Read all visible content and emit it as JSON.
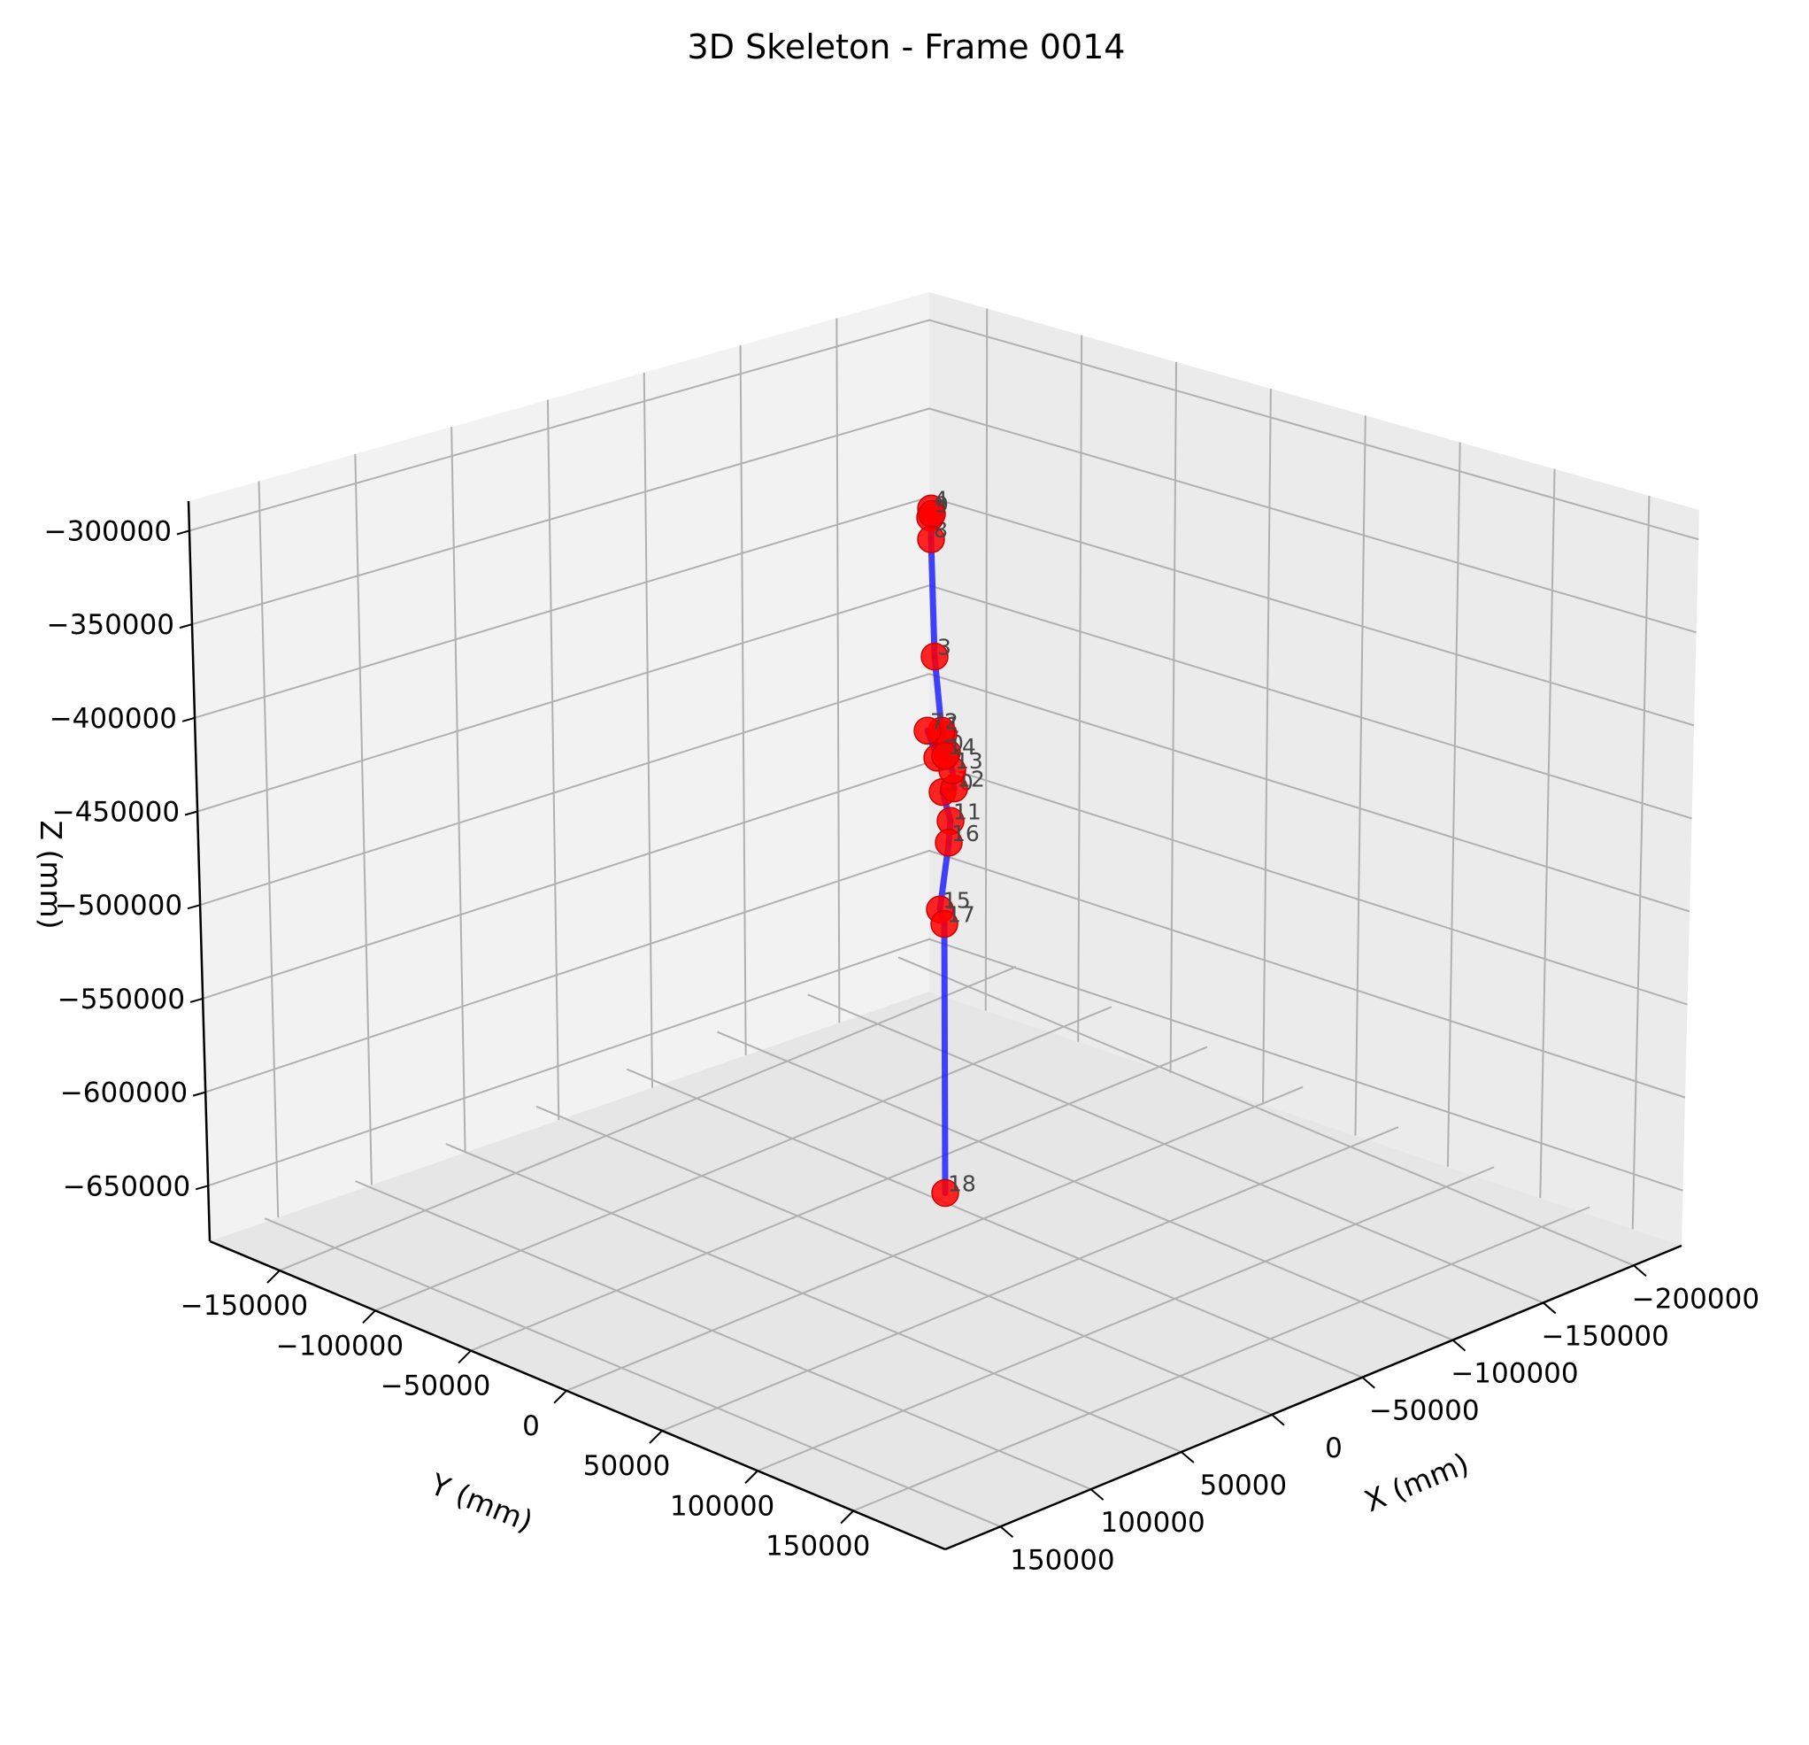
{
  "chart_data": {
    "type": "scatter",
    "projection": "3d",
    "title": "3D Skeleton - Frame 0014",
    "xlabel": "X (mm)",
    "ylabel": "Y (mm)",
    "zlabel": "Z (mm)",
    "xticks": [
      "−200000",
      "−150000",
      "−100000",
      "−50000",
      "0",
      "50000",
      "100000",
      "150000"
    ],
    "yticks": [
      "−150000",
      "−100000",
      "−50000",
      "0",
      "50000",
      "100000",
      "150000"
    ],
    "zticks": [
      "−300000",
      "−350000",
      "−400000",
      "−450000",
      "−500000",
      "−550000",
      "−600000",
      "−650000"
    ],
    "grid": true,
    "colors": {
      "joint": "#ff0000",
      "bone": "#2222ff",
      "pane": "#f2f2f2",
      "grid": "#b0b0b0"
    },
    "joints": [
      {
        "id": "0",
        "z": -420000
      },
      {
        "id": "1",
        "z": -410000
      },
      {
        "id": "2",
        "z": -408000
      },
      {
        "id": "3",
        "z": -367000
      },
      {
        "id": "4",
        "z": -285000
      },
      {
        "id": "5",
        "z": -290000
      },
      {
        "id": "6",
        "z": -423000
      },
      {
        "id": "7",
        "z": -408000
      },
      {
        "id": "8",
        "z": -302000
      },
      {
        "id": "9",
        "z": -288000
      },
      {
        "id": "10",
        "z": -442000
      },
      {
        "id": "11",
        "z": -458000
      },
      {
        "id": "12",
        "z": -440000
      },
      {
        "id": "13",
        "z": -430000
      },
      {
        "id": "14",
        "z": -422000
      },
      {
        "id": "15",
        "z": -507000
      },
      {
        "id": "16",
        "z": -470000
      },
      {
        "id": "17",
        "z": -515000
      },
      {
        "id": "18",
        "z": -664000
      }
    ]
  }
}
